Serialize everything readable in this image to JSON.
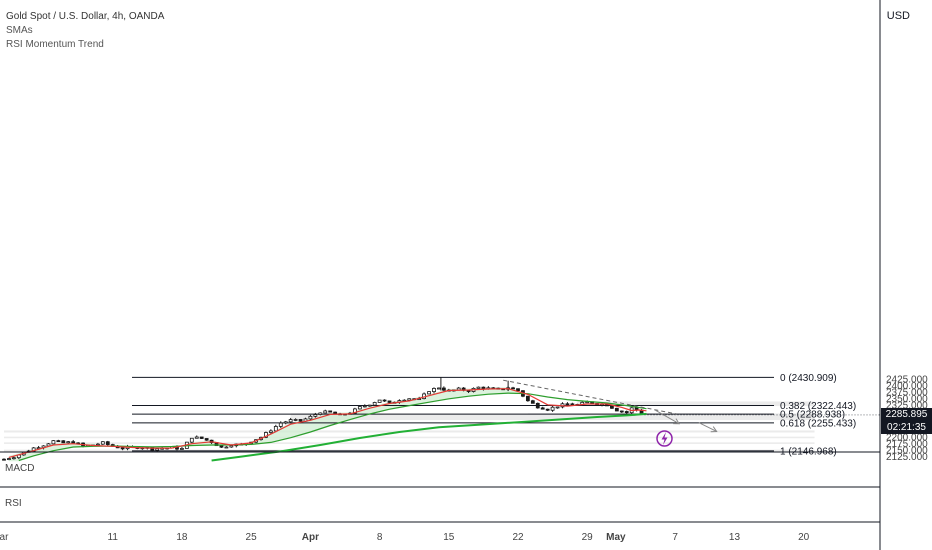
{
  "legend": {
    "symbol_title": "Gold Spot / U.S. Dollar, 4h, OANDA",
    "indicator_1": "SMAs",
    "indicator_2": "RSI Momentum Trend"
  },
  "currency_label": "USD",
  "current_price": {
    "value": "2285.895",
    "countdown": "02:21:35"
  },
  "panes": {
    "macd": "MACD",
    "rsi": "RSI"
  },
  "colors": {
    "sma_fast": "#e53935",
    "sma_mid": "#2e9e2e",
    "sma_slow": "#22b035",
    "candle": "#1a1a1a",
    "zone": "#ebebeb",
    "momentum_fill": "#cdeccf",
    "lightning": "#8e24aa"
  },
  "chart_data": {
    "type": "candlestick",
    "title": "Gold Spot / U.S. Dollar, 4h, OANDA",
    "y_axis": {
      "ylim": [
        2110,
        2440
      ],
      "ticks": [
        2125,
        2150,
        2175,
        2200,
        2225,
        2250,
        2275,
        2300,
        2325,
        2350,
        2375,
        2400,
        2425
      ],
      "tick_labels": [
        "2125.000",
        "2150.000",
        "2175.000",
        "2200.000",
        "2225.000",
        "2250.000",
        "2275.000",
        "2300.000",
        "2325.000",
        "2350.000",
        "2375.000",
        "2400.000",
        "2425.000"
      ]
    },
    "x_axis": {
      "xlim": [
        0,
        82
      ],
      "ticks": [
        {
          "label": "ar",
          "x": 0,
          "bold": false
        },
        {
          "label": "11",
          "x": 11,
          "bold": false
        },
        {
          "label": "18",
          "x": 18,
          "bold": false
        },
        {
          "label": "25",
          "x": 25,
          "bold": false
        },
        {
          "label": "Apr",
          "x": 31,
          "bold": true
        },
        {
          "label": "8",
          "x": 38,
          "bold": false
        },
        {
          "label": "15",
          "x": 45,
          "bold": false
        },
        {
          "label": "22",
          "x": 52,
          "bold": false
        },
        {
          "label": "29",
          "x": 59,
          "bold": false
        },
        {
          "label": "May",
          "x": 61.9,
          "bold": true
        },
        {
          "label": "7",
          "x": 67.9,
          "bold": false
        },
        {
          "label": "13",
          "x": 73.9,
          "bold": false
        },
        {
          "label": "20",
          "x": 80.9,
          "bold": false
        }
      ]
    },
    "price_path": [
      [
        0.0,
        2115
      ],
      [
        1,
        2125
      ],
      [
        2,
        2140
      ],
      [
        3,
        2158
      ],
      [
        4,
        2170
      ],
      [
        5,
        2185
      ],
      [
        6,
        2178
      ],
      [
        7,
        2182
      ],
      [
        8,
        2165
      ],
      [
        9,
        2170
      ],
      [
        10,
        2178
      ],
      [
        11,
        2165
      ],
      [
        12,
        2158
      ],
      [
        13,
        2160
      ],
      [
        14,
        2162
      ],
      [
        15,
        2155
      ],
      [
        16,
        2158
      ],
      [
        17,
        2160
      ],
      [
        18,
        2155
      ],
      [
        19,
        2200
      ],
      [
        20,
        2195
      ],
      [
        21,
        2182
      ],
      [
        22,
        2160
      ],
      [
        23,
        2172
      ],
      [
        24,
        2170
      ],
      [
        25,
        2185
      ],
      [
        26,
        2200
      ],
      [
        27,
        2228
      ],
      [
        28,
        2255
      ],
      [
        29,
        2265
      ],
      [
        30,
        2262
      ],
      [
        31,
        2278
      ],
      [
        32,
        2298
      ],
      [
        33,
        2295
      ],
      [
        34,
        2285
      ],
      [
        35,
        2295
      ],
      [
        36,
        2315
      ],
      [
        37,
        2328
      ],
      [
        38,
        2345
      ],
      [
        39,
        2330
      ],
      [
        40,
        2345
      ],
      [
        41,
        2350
      ],
      [
        42,
        2345
      ],
      [
        43,
        2380
      ],
      [
        44,
        2392
      ],
      [
        45,
        2378
      ],
      [
        46,
        2385
      ],
      [
        47,
        2380
      ],
      [
        48,
        2392
      ],
      [
        49,
        2388
      ],
      [
        50,
        2383
      ],
      [
        51,
        2392
      ],
      [
        52,
        2380
      ],
      [
        53,
        2340
      ],
      [
        54,
        2318
      ],
      [
        55,
        2308
      ],
      [
        56,
        2320
      ],
      [
        57,
        2328
      ],
      [
        58,
        2325
      ],
      [
        59,
        2335
      ],
      [
        60,
        2330
      ],
      [
        61,
        2325
      ],
      [
        62,
        2305
      ],
      [
        63,
        2295
      ],
      [
        63.6,
        2315
      ],
      [
        64.2,
        2300
      ],
      [
        64.8,
        2286
      ]
    ],
    "series": [
      {
        "name": "",
        "role": "fast_sma",
        "points": [
          [
            0.5,
            2122
          ],
          [
            3,
            2148
          ],
          [
            5,
            2170
          ],
          [
            7,
            2175
          ],
          [
            9,
            2168
          ],
          [
            11,
            2165
          ],
          [
            13,
            2160
          ],
          [
            15,
            2158
          ],
          [
            17,
            2158
          ],
          [
            19,
            2175
          ],
          [
            21,
            2182
          ],
          [
            23,
            2170
          ],
          [
            25,
            2178
          ],
          [
            27,
            2212
          ],
          [
            29,
            2250
          ],
          [
            31,
            2265
          ],
          [
            33,
            2288
          ],
          [
            35,
            2290
          ],
          [
            37,
            2312
          ],
          [
            39,
            2330
          ],
          [
            41,
            2340
          ],
          [
            43,
            2360
          ],
          [
            45,
            2380
          ],
          [
            47,
            2382
          ],
          [
            49,
            2386
          ],
          [
            51,
            2387
          ],
          [
            53,
            2365
          ],
          [
            55,
            2325
          ],
          [
            57,
            2320
          ],
          [
            59,
            2328
          ],
          [
            61,
            2328
          ],
          [
            62.5,
            2315
          ],
          [
            63.5,
            2303
          ],
          [
            64.3,
            2305
          ],
          [
            65,
            2302
          ]
        ]
      },
      {
        "name": "",
        "role": "mid_sma",
        "points": [
          [
            1.5,
            2110
          ],
          [
            3,
            2128
          ],
          [
            5,
            2148
          ],
          [
            7,
            2162
          ],
          [
            9,
            2165
          ],
          [
            11,
            2166
          ],
          [
            13,
            2164
          ],
          [
            15,
            2163
          ],
          [
            17,
            2164
          ],
          [
            19,
            2168
          ],
          [
            21,
            2170
          ],
          [
            23,
            2170
          ],
          [
            25,
            2172
          ],
          [
            27,
            2180
          ],
          [
            29,
            2198
          ],
          [
            31,
            2220
          ],
          [
            33,
            2245
          ],
          [
            35,
            2268
          ],
          [
            37,
            2290
          ],
          [
            39,
            2308
          ],
          [
            41,
            2322
          ],
          [
            43,
            2335
          ],
          [
            45,
            2348
          ],
          [
            47,
            2358
          ],
          [
            49,
            2366
          ],
          [
            51,
            2370
          ],
          [
            53,
            2368
          ],
          [
            55,
            2355
          ],
          [
            57,
            2345
          ],
          [
            59,
            2338
          ],
          [
            61,
            2332
          ],
          [
            63,
            2322
          ],
          [
            65,
            2310
          ]
        ]
      },
      {
        "name": "",
        "role": "slow_sma",
        "points": [
          [
            21,
            2110
          ],
          [
            24,
            2125
          ],
          [
            28,
            2145
          ],
          [
            32,
            2170
          ],
          [
            36,
            2197
          ],
          [
            40,
            2220
          ],
          [
            44,
            2238
          ],
          [
            48,
            2248
          ],
          [
            52,
            2258
          ],
          [
            56,
            2268
          ],
          [
            60,
            2278
          ],
          [
            63,
            2284
          ],
          [
            65,
            2290
          ]
        ]
      }
    ],
    "fibonacci": [
      {
        "label": "0 (2430.909)",
        "price": 2430.909
      },
      {
        "label": "0.382 (2322.443)",
        "price": 2322.443
      },
      {
        "label": "0.5 (2288.938)",
        "price": 2288.938
      },
      {
        "label": "0.618 (2255.433)",
        "price": 2255.433
      },
      {
        "label": "1 (2146.968)",
        "price": 2146.968
      }
    ],
    "trendline": [
      [
        50.5,
        2420
      ],
      [
        68,
        2290
      ]
    ],
    "projection_arrows": [
      [
        [
          65.8,
          2306
        ],
        [
          68.3,
          2252
        ]
      ],
      [
        [
          70.3,
          2256
        ],
        [
          72.1,
          2222
        ]
      ]
    ],
    "zones": [
      [
        [
          0,
          82
        ],
        [
          2144,
          2152
        ]
      ],
      [
        [
          0,
          82
        ],
        [
          2174,
          2180
        ]
      ],
      [
        [
          0,
          82
        ],
        [
          2196,
          2202
        ]
      ],
      [
        [
          0,
          82
        ],
        [
          2218,
          2226
        ]
      ],
      [
        [
          29,
          82
        ],
        [
          2266,
          2292
        ]
      ],
      [
        [
          58,
          82
        ],
        [
          2320,
          2338
        ]
      ],
      [
        [
          53,
          70.5
        ],
        [
          2285,
          2293
        ]
      ]
    ],
    "grid": false
  }
}
